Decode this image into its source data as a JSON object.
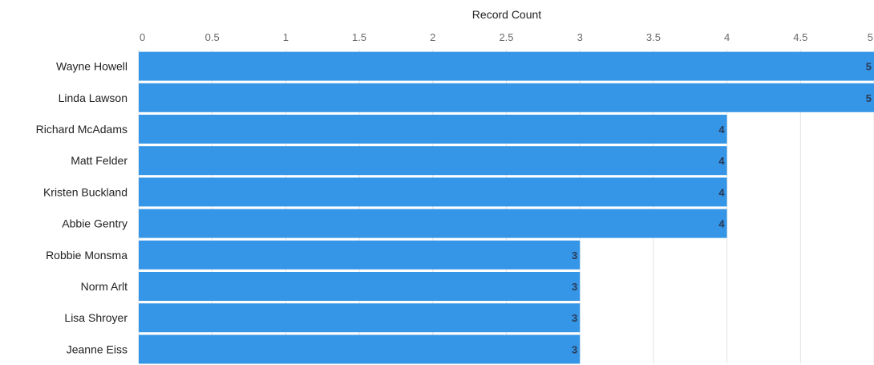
{
  "chart_data": {
    "type": "bar",
    "orientation": "horizontal",
    "title": "",
    "xlabel": "Record Count",
    "ylabel": "",
    "xlim": [
      0,
      5
    ],
    "x_ticks": [
      "0",
      "0.5",
      "1",
      "1.5",
      "2",
      "2.5",
      "3",
      "3.5",
      "4",
      "4.5",
      "5"
    ],
    "x_axis_position": "top",
    "grid": true,
    "legend": "none",
    "bar_color": "#3595e6",
    "categories": [
      "Wayne Howell",
      "Linda Lawson",
      "Richard McAdams",
      "Matt Felder",
      "Kristen Buckland",
      "Abbie Gentry",
      "Robbie Monsma",
      "Norm Arlt",
      "Lisa Shroyer",
      "Jeanne Eiss"
    ],
    "values": [
      5,
      5,
      4,
      4,
      4,
      4,
      3,
      3,
      3,
      3
    ],
    "data_labels": [
      "5",
      "5",
      "4",
      "4",
      "4",
      "4",
      "3",
      "3",
      "3",
      "3"
    ]
  }
}
